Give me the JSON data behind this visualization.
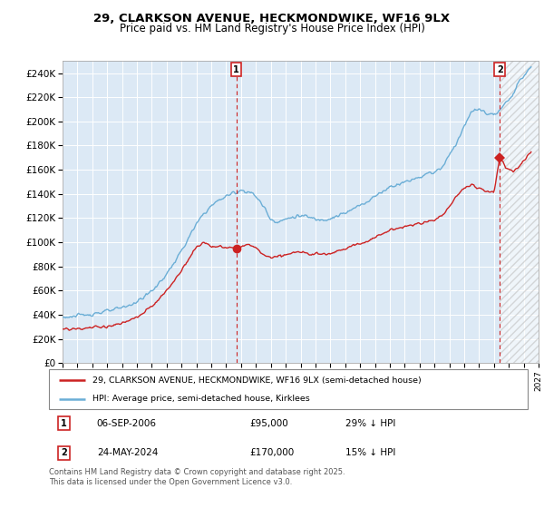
{
  "title": "29, CLARKSON AVENUE, HECKMONDWIKE, WF16 9LX",
  "subtitle": "Price paid vs. HM Land Registry's House Price Index (HPI)",
  "line1_color": "#cc2222",
  "line2_color": "#6baed6",
  "plot_bg_color": "#dce9f5",
  "ylim": [
    0,
    250000
  ],
  "xlim_start": 1995.0,
  "xlim_end": 2027.0,
  "sale1_date": 2006.68,
  "sale1_price": 95000,
  "sale2_date": 2024.39,
  "sale2_price": 170000,
  "legend_line1": "29, CLARKSON AVENUE, HECKMONDWIKE, WF16 9LX (semi-detached house)",
  "legend_line2": "HPI: Average price, semi-detached house, Kirklees",
  "annotation1_date": "06-SEP-2006",
  "annotation1_price": "£95,000",
  "annotation1_hpi": "29% ↓ HPI",
  "annotation2_date": "24-MAY-2024",
  "annotation2_price": "£170,000",
  "annotation2_hpi": "15% ↓ HPI",
  "footnote": "Contains HM Land Registry data © Crown copyright and database right 2025.\nThis data is licensed under the Open Government Licence v3.0.",
  "yticks": [
    0,
    20000,
    40000,
    60000,
    80000,
    100000,
    120000,
    140000,
    160000,
    180000,
    200000,
    220000,
    240000
  ],
  "ytick_labels": [
    "£0",
    "£20K",
    "£40K",
    "£60K",
    "£80K",
    "£100K",
    "£120K",
    "£140K",
    "£160K",
    "£180K",
    "£200K",
    "£220K",
    "£240K"
  ]
}
